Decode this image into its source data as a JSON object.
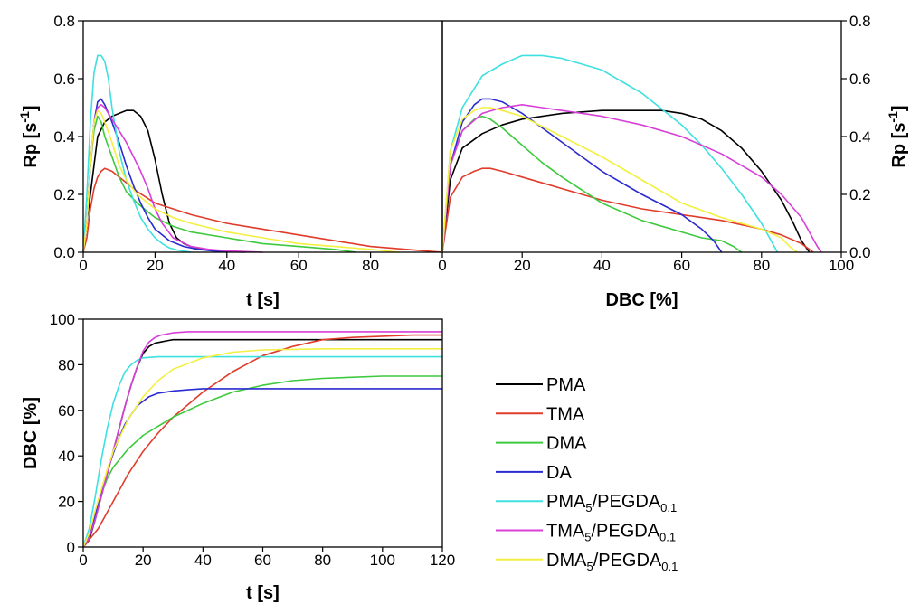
{
  "series_legend": [
    {
      "key": "PMA",
      "base": "PMA",
      "color": "#000000"
    },
    {
      "key": "TMA",
      "base": "TMA",
      "color": "#e03c2c"
    },
    {
      "key": "DMA",
      "base": "DMA",
      "color": "#3ec93e"
    },
    {
      "key": "DA",
      "base": "DA",
      "color": "#2b2bd1"
    },
    {
      "key": "PMA5",
      "base": "PMA",
      "sub1": "5",
      "mid": "/PEGDA",
      "sub2": "0.1",
      "color": "#3fe0e0"
    },
    {
      "key": "TMA5",
      "base": "TMA",
      "sub1": "5",
      "mid": "/PEGDA",
      "sub2": "0.1",
      "color": "#d83fd8"
    },
    {
      "key": "DMA5",
      "base": "DMA",
      "sub1": "5",
      "mid": "/PEGDA",
      "sub2": "0.1",
      "color": "#f2f040"
    }
  ],
  "chart_data": [
    {
      "id": "rp-vs-t",
      "type": "line",
      "xlabel": "t [s]",
      "ylabel": "Rp [s-1]",
      "xlim": [
        0,
        100
      ],
      "ylim": [
        0,
        0.8
      ],
      "xticks": [
        0,
        20,
        40,
        60,
        80
      ],
      "yticks": [
        0.0,
        0.2,
        0.4,
        0.6,
        0.8
      ],
      "ytick_labels": [
        "0.0",
        "0.2",
        "0.4",
        "0.6",
        "0.8"
      ],
      "series": [
        {
          "key": "PMA",
          "name": "PMA",
          "x": [
            0,
            2,
            4,
            6,
            8,
            10,
            12,
            14,
            16,
            18,
            20,
            22,
            24,
            26,
            28,
            30,
            34,
            40
          ],
          "y": [
            0,
            0.2,
            0.4,
            0.45,
            0.47,
            0.48,
            0.49,
            0.49,
            0.47,
            0.42,
            0.32,
            0.2,
            0.1,
            0.05,
            0.03,
            0.02,
            0.01,
            0
          ]
        },
        {
          "key": "TMA",
          "name": "TMA",
          "x": [
            0,
            1,
            2,
            3,
            4,
            5,
            6,
            8,
            10,
            15,
            20,
            25,
            30,
            40,
            50,
            60,
            70,
            80,
            90,
            95,
            100
          ],
          "y": [
            0,
            0.05,
            0.15,
            0.22,
            0.26,
            0.28,
            0.29,
            0.28,
            0.26,
            0.21,
            0.17,
            0.15,
            0.13,
            0.1,
            0.08,
            0.06,
            0.04,
            0.02,
            0.01,
            0.005,
            0
          ]
        },
        {
          "key": "DMA",
          "name": "DMA",
          "x": [
            0,
            1,
            2,
            3,
            4,
            5,
            6,
            8,
            10,
            12,
            15,
            18,
            20,
            25,
            30,
            40,
            50,
            60,
            70,
            76
          ],
          "y": [
            0,
            0.1,
            0.3,
            0.42,
            0.47,
            0.45,
            0.4,
            0.33,
            0.26,
            0.21,
            0.17,
            0.14,
            0.12,
            0.09,
            0.07,
            0.05,
            0.03,
            0.02,
            0.01,
            0
          ]
        },
        {
          "key": "DA",
          "name": "DA",
          "x": [
            0,
            1,
            2,
            3,
            4,
            5,
            6,
            8,
            10,
            12,
            14,
            16,
            18,
            20,
            24,
            28,
            32,
            36,
            40,
            45
          ],
          "y": [
            0,
            0.1,
            0.3,
            0.45,
            0.52,
            0.53,
            0.51,
            0.45,
            0.38,
            0.3,
            0.23,
            0.17,
            0.12,
            0.08,
            0.04,
            0.02,
            0.01,
            0.005,
            0.002,
            0
          ]
        },
        {
          "key": "PMA5",
          "name": "PMA5/PEGDA0.1",
          "x": [
            0,
            1,
            2,
            3,
            4,
            5,
            6,
            7,
            8,
            10,
            12,
            14,
            16,
            18,
            20,
            22,
            24,
            26,
            28,
            30
          ],
          "y": [
            0,
            0.2,
            0.45,
            0.62,
            0.68,
            0.68,
            0.66,
            0.6,
            0.5,
            0.35,
            0.25,
            0.18,
            0.12,
            0.08,
            0.05,
            0.03,
            0.015,
            0.008,
            0.004,
            0
          ]
        },
        {
          "key": "TMA5",
          "name": "TMA5/PEGDA0.1",
          "x": [
            0,
            1,
            2,
            3,
            4,
            5,
            6,
            8,
            10,
            12,
            14,
            16,
            18,
            20,
            22,
            25,
            30,
            35,
            40,
            50
          ],
          "y": [
            0,
            0.1,
            0.3,
            0.45,
            0.5,
            0.51,
            0.5,
            0.46,
            0.42,
            0.38,
            0.33,
            0.28,
            0.22,
            0.15,
            0.1,
            0.05,
            0.02,
            0.01,
            0.005,
            0
          ]
        },
        {
          "key": "DMA5",
          "name": "DMA5/PEGDA0.1",
          "x": [
            0,
            1,
            2,
            3,
            4,
            5,
            6,
            8,
            10,
            12,
            15,
            18,
            20,
            25,
            30,
            40,
            50,
            60,
            70,
            80,
            88
          ],
          "y": [
            0,
            0.1,
            0.3,
            0.45,
            0.49,
            0.48,
            0.45,
            0.38,
            0.3,
            0.25,
            0.2,
            0.17,
            0.15,
            0.12,
            0.1,
            0.07,
            0.05,
            0.03,
            0.02,
            0.01,
            0
          ]
        }
      ]
    },
    {
      "id": "rp-vs-dbc",
      "type": "line",
      "xlabel": "DBC [%]",
      "ylabel": "Rp [s-1]",
      "xlim": [
        0,
        100
      ],
      "ylim": [
        0,
        0.8
      ],
      "xticks": [
        0,
        20,
        40,
        60,
        80,
        100
      ],
      "yticks": [
        0.0,
        0.2,
        0.4,
        0.6,
        0.8
      ],
      "ytick_labels": [
        "0.0",
        "0.2",
        "0.4",
        "0.6",
        "0.8"
      ],
      "series": [
        {
          "key": "PMA",
          "name": "PMA",
          "x": [
            0,
            2,
            5,
            10,
            15,
            20,
            30,
            40,
            50,
            55,
            60,
            65,
            70,
            75,
            80,
            85,
            88,
            90,
            92
          ],
          "y": [
            0,
            0.25,
            0.36,
            0.41,
            0.44,
            0.46,
            0.48,
            0.49,
            0.49,
            0.49,
            0.48,
            0.46,
            0.42,
            0.36,
            0.28,
            0.18,
            0.1,
            0.04,
            0
          ]
        },
        {
          "key": "TMA",
          "name": "TMA",
          "x": [
            0,
            2,
            5,
            8,
            10,
            12,
            15,
            20,
            25,
            30,
            40,
            50,
            60,
            70,
            80,
            85,
            90,
            93
          ],
          "y": [
            0,
            0.19,
            0.26,
            0.28,
            0.29,
            0.29,
            0.28,
            0.26,
            0.24,
            0.22,
            0.18,
            0.15,
            0.13,
            0.11,
            0.08,
            0.06,
            0.03,
            0
          ]
        },
        {
          "key": "DMA",
          "name": "DMA",
          "x": [
            0,
            2,
            5,
            8,
            10,
            12,
            15,
            20,
            25,
            30,
            40,
            50,
            60,
            65,
            70,
            73,
            75
          ],
          "y": [
            0,
            0.3,
            0.42,
            0.46,
            0.47,
            0.46,
            0.43,
            0.37,
            0.31,
            0.26,
            0.17,
            0.11,
            0.07,
            0.05,
            0.04,
            0.02,
            0
          ]
        },
        {
          "key": "DA",
          "name": "DA",
          "x": [
            0,
            2,
            5,
            8,
            10,
            12,
            15,
            20,
            25,
            30,
            40,
            50,
            60,
            65,
            68,
            70
          ],
          "y": [
            0,
            0.3,
            0.45,
            0.51,
            0.53,
            0.53,
            0.52,
            0.48,
            0.43,
            0.38,
            0.28,
            0.2,
            0.13,
            0.08,
            0.04,
            0
          ]
        },
        {
          "key": "PMA5",
          "name": "PMA5/PEGDA0.1",
          "x": [
            0,
            2,
            5,
            10,
            15,
            20,
            25,
            30,
            40,
            50,
            60,
            65,
            70,
            75,
            80,
            82,
            84
          ],
          "y": [
            0,
            0.35,
            0.5,
            0.61,
            0.65,
            0.68,
            0.68,
            0.67,
            0.63,
            0.55,
            0.44,
            0.37,
            0.29,
            0.2,
            0.1,
            0.05,
            0
          ]
        },
        {
          "key": "TMA5",
          "name": "TMA5/PEGDA0.1",
          "x": [
            0,
            2,
            5,
            10,
            15,
            20,
            25,
            30,
            40,
            50,
            60,
            70,
            80,
            85,
            90,
            92,
            94,
            95
          ],
          "y": [
            0,
            0.3,
            0.42,
            0.48,
            0.5,
            0.51,
            0.5,
            0.49,
            0.47,
            0.44,
            0.4,
            0.34,
            0.26,
            0.2,
            0.12,
            0.07,
            0.02,
            0
          ]
        },
        {
          "key": "DMA5",
          "name": "DMA5/PEGDA0.1",
          "x": [
            0,
            2,
            5,
            8,
            10,
            12,
            15,
            20,
            30,
            40,
            50,
            60,
            70,
            80,
            85,
            87,
            89
          ],
          "y": [
            0,
            0.35,
            0.46,
            0.49,
            0.5,
            0.5,
            0.49,
            0.47,
            0.4,
            0.33,
            0.25,
            0.17,
            0.12,
            0.08,
            0.05,
            0.02,
            0
          ]
        }
      ]
    },
    {
      "id": "dbc-vs-t",
      "type": "line",
      "xlabel": "t [s]",
      "ylabel": "DBC [%]",
      "xlim": [
        0,
        120
      ],
      "ylim": [
        0,
        100
      ],
      "xticks": [
        0,
        20,
        40,
        60,
        80,
        100,
        120
      ],
      "yticks": [
        0,
        20,
        40,
        60,
        80,
        100
      ],
      "ytick_labels": [
        "0",
        "20",
        "40",
        "60",
        "80",
        "100"
      ],
      "series": [
        {
          "key": "PMA",
          "name": "PMA",
          "x": [
            0,
            2,
            4,
            6,
            8,
            10,
            12,
            14,
            16,
            18,
            20,
            22,
            24,
            26,
            28,
            30,
            40,
            60,
            80,
            100,
            120
          ],
          "y": [
            0,
            3,
            12,
            22,
            32,
            42,
            52,
            62,
            71,
            79,
            85,
            88,
            89.5,
            90,
            90.5,
            91,
            91,
            91,
            91,
            91,
            91
          ]
        },
        {
          "key": "TMA",
          "name": "TMA",
          "x": [
            0,
            5,
            10,
            15,
            20,
            25,
            30,
            40,
            50,
            60,
            70,
            80,
            90,
            100,
            110,
            120
          ],
          "y": [
            0,
            8,
            20,
            32,
            42,
            50,
            57,
            68,
            77,
            84,
            88,
            91,
            92,
            92.5,
            93,
            93
          ]
        },
        {
          "key": "DMA",
          "name": "DMA",
          "x": [
            0,
            2,
            4,
            6,
            8,
            10,
            15,
            20,
            25,
            30,
            40,
            50,
            60,
            70,
            80,
            100,
            120
          ],
          "y": [
            0,
            6,
            15,
            23,
            30,
            35,
            43,
            49,
            53,
            57,
            63,
            68,
            71,
            73,
            74,
            75,
            75
          ]
        },
        {
          "key": "DA",
          "name": "DA",
          "x": [
            0,
            2,
            4,
            6,
            8,
            10,
            12,
            14,
            16,
            18,
            20,
            22,
            25,
            30,
            35,
            40,
            60,
            80,
            100,
            120
          ],
          "y": [
            0,
            5,
            14,
            24,
            33,
            41,
            48,
            54,
            58,
            62,
            64,
            66,
            67.5,
            68.5,
            69,
            69.5,
            69.5,
            69.5,
            69.5,
            69.5
          ]
        },
        {
          "key": "PMA5",
          "name": "PMA5/PEGDA0.1",
          "x": [
            0,
            2,
            4,
            6,
            8,
            10,
            12,
            14,
            16,
            18,
            20,
            25,
            30,
            40,
            60,
            80,
            100,
            120
          ],
          "y": [
            0,
            8,
            22,
            38,
            52,
            63,
            71,
            77,
            80,
            82,
            83,
            83.5,
            83.5,
            83.5,
            83.5,
            83.5,
            83.5,
            83.5
          ]
        },
        {
          "key": "TMA5",
          "name": "TMA5/PEGDA0.1",
          "x": [
            0,
            2,
            4,
            6,
            8,
            10,
            12,
            14,
            16,
            18,
            20,
            22,
            24,
            26,
            30,
            35,
            40,
            60,
            80,
            100,
            120
          ],
          "y": [
            0,
            4,
            12,
            22,
            32,
            42,
            52,
            62,
            71,
            79,
            86,
            90,
            92,
            93,
            94,
            94.5,
            94.5,
            94.5,
            94.5,
            94.5,
            94.5
          ]
        },
        {
          "key": "DMA5",
          "name": "DMA5/PEGDA0.1",
          "x": [
            0,
            2,
            4,
            6,
            8,
            10,
            15,
            20,
            25,
            30,
            40,
            50,
            60,
            80,
            100,
            120
          ],
          "y": [
            0,
            6,
            16,
            25,
            34,
            42,
            56,
            66,
            73,
            78,
            83,
            85.5,
            86.5,
            87,
            87,
            87
          ]
        }
      ]
    }
  ]
}
